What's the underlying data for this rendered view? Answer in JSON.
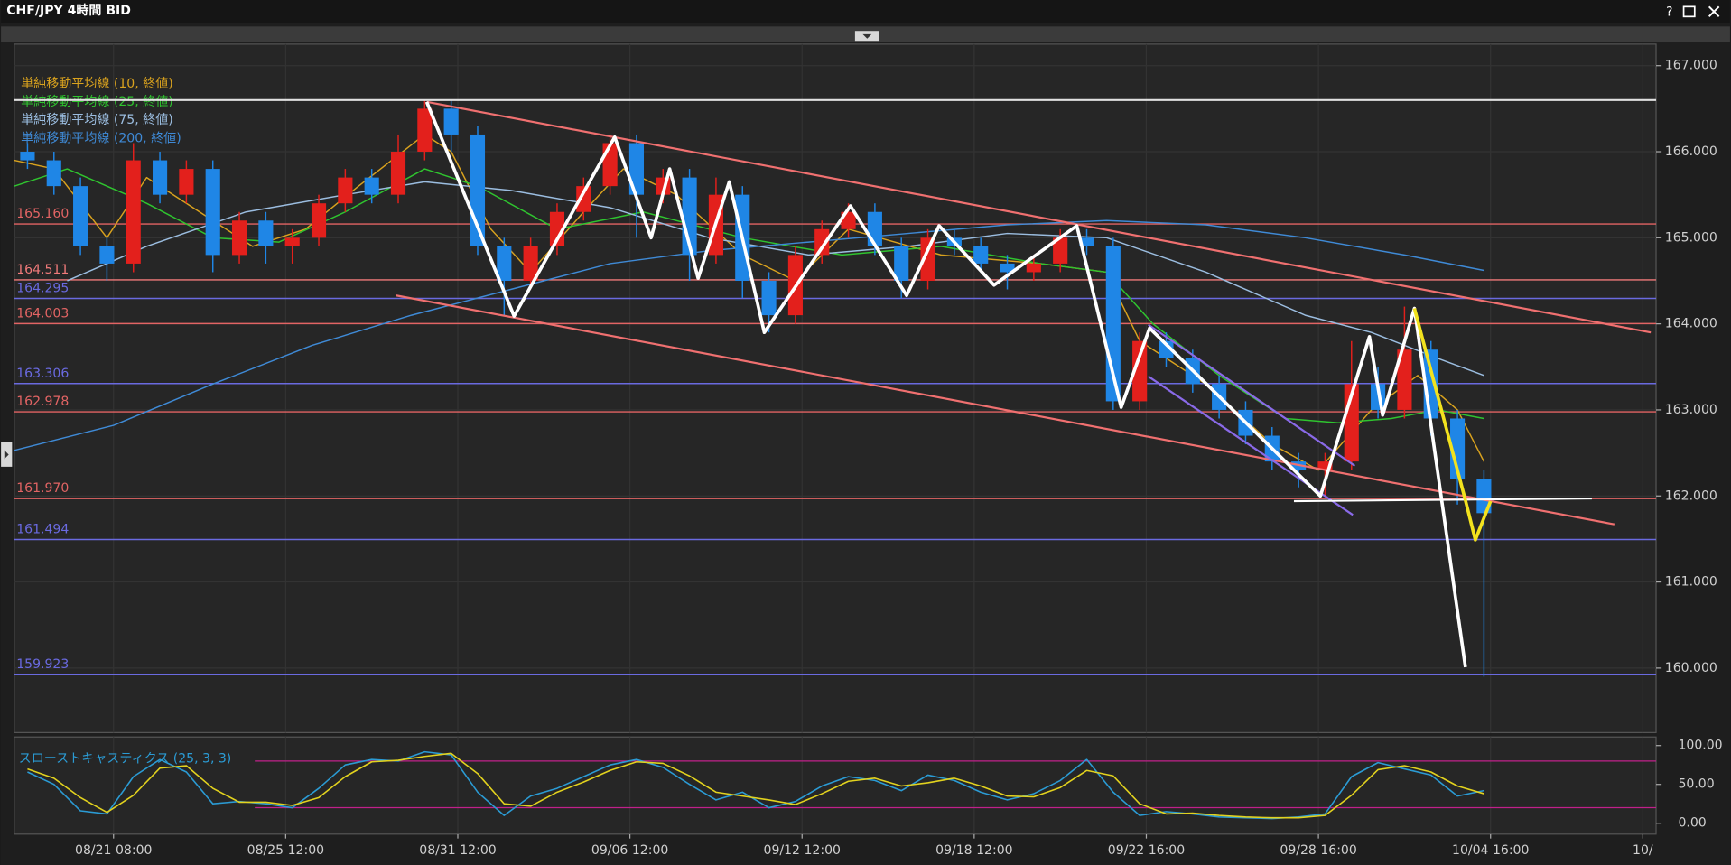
{
  "window_buttons": [
    "?"
  ],
  "chart_data": [
    {
      "type": "candlestick",
      "title": "CHF/JPY 4時間 BID",
      "xlim": [
        0,
        248
      ],
      "xticks": [
        {
          "value": 15,
          "label": "08/21 08:00"
        },
        {
          "value": 41,
          "label": "08/25 12:00"
        },
        {
          "value": 67,
          "label": "08/31 12:00"
        },
        {
          "value": 93,
          "label": "09/06 12:00"
        },
        {
          "value": 119,
          "label": "09/12 12:00"
        },
        {
          "value": 145,
          "label": "09/18 12:00"
        },
        {
          "value": 171,
          "label": "09/22 16:00"
        },
        {
          "value": 197,
          "label": "09/28 16:00"
        },
        {
          "value": 223,
          "label": "10/04 16:00"
        },
        {
          "value": 246,
          "label": "10/"
        }
      ],
      "ylim": [
        159.25,
        167.25
      ],
      "yticks": [
        {
          "value": 160,
          "label": "160.000"
        },
        {
          "value": 161,
          "label": "161.000"
        },
        {
          "value": 162,
          "label": "162.000"
        },
        {
          "value": 163,
          "label": "163.000"
        },
        {
          "value": 164,
          "label": "164.000"
        },
        {
          "value": 165,
          "label": "165.000"
        },
        {
          "value": 166,
          "label": "166.000"
        },
        {
          "value": 167,
          "label": "167.000"
        }
      ],
      "grid": true,
      "up_color": "#e3201c",
      "down_color": "#1f86e6",
      "x": [
        2,
        6,
        10,
        14,
        18,
        22,
        26,
        30,
        34,
        38,
        42,
        46,
        50,
        54,
        58,
        62,
        66,
        70,
        74,
        78,
        82,
        86,
        90,
        94,
        98,
        102,
        106,
        110,
        114,
        118,
        122,
        126,
        130,
        134,
        138,
        142,
        146,
        150,
        154,
        158,
        162,
        166,
        170,
        174,
        178,
        182,
        186,
        190,
        194,
        198,
        202,
        206,
        210,
        214,
        218,
        222
      ],
      "candles": [
        [
          166.0,
          166.1,
          165.8,
          165.9
        ],
        [
          165.9,
          166.0,
          165.5,
          165.6
        ],
        [
          165.6,
          165.7,
          164.8,
          164.9
        ],
        [
          164.9,
          165.0,
          164.5,
          164.7
        ],
        [
          164.7,
          166.1,
          164.6,
          165.9
        ],
        [
          165.9,
          166.0,
          165.4,
          165.5
        ],
        [
          165.5,
          165.9,
          165.4,
          165.8
        ],
        [
          165.8,
          165.9,
          164.6,
          164.8
        ],
        [
          164.8,
          165.3,
          164.7,
          165.2
        ],
        [
          165.2,
          165.3,
          164.7,
          164.9
        ],
        [
          164.9,
          165.1,
          164.7,
          165.0
        ],
        [
          165.0,
          165.5,
          164.9,
          165.4
        ],
        [
          165.4,
          165.8,
          165.3,
          165.7
        ],
        [
          165.7,
          165.8,
          165.4,
          165.5
        ],
        [
          165.5,
          166.2,
          165.4,
          166.0
        ],
        [
          166.0,
          166.6,
          165.9,
          166.5
        ],
        [
          166.5,
          166.6,
          166.0,
          166.2
        ],
        [
          166.2,
          166.3,
          164.8,
          164.9
        ],
        [
          164.9,
          165.0,
          164.1,
          164.5
        ],
        [
          164.5,
          165.0,
          164.4,
          164.9
        ],
        [
          164.9,
          165.4,
          164.8,
          165.3
        ],
        [
          165.3,
          165.7,
          165.2,
          165.6
        ],
        [
          165.6,
          166.2,
          165.5,
          166.1
        ],
        [
          166.1,
          166.2,
          165.0,
          165.5
        ],
        [
          165.5,
          165.8,
          165.4,
          165.7
        ],
        [
          165.7,
          165.8,
          164.5,
          164.8
        ],
        [
          164.8,
          165.7,
          164.7,
          165.5
        ],
        [
          165.5,
          165.6,
          164.3,
          164.5
        ],
        [
          164.5,
          164.6,
          163.9,
          164.1
        ],
        [
          164.1,
          164.9,
          164.0,
          164.8
        ],
        [
          164.8,
          165.2,
          164.7,
          165.1
        ],
        [
          165.1,
          165.4,
          165.0,
          165.3
        ],
        [
          165.3,
          165.4,
          164.8,
          164.9
        ],
        [
          164.9,
          165.0,
          164.3,
          164.5
        ],
        [
          164.5,
          165.1,
          164.4,
          165.0
        ],
        [
          165.0,
          165.1,
          164.8,
          164.9
        ],
        [
          164.9,
          165.0,
          164.6,
          164.7
        ],
        [
          164.7,
          164.8,
          164.4,
          164.6
        ],
        [
          164.6,
          164.8,
          164.5,
          164.7
        ],
        [
          164.7,
          165.1,
          164.6,
          165.0
        ],
        [
          165.0,
          165.1,
          164.8,
          164.9
        ],
        [
          164.9,
          165.0,
          163.0,
          163.1
        ],
        [
          163.1,
          163.9,
          163.0,
          163.8
        ],
        [
          163.8,
          163.9,
          163.5,
          163.6
        ],
        [
          163.6,
          163.7,
          163.2,
          163.3
        ],
        [
          163.3,
          163.4,
          162.9,
          163.0
        ],
        [
          163.0,
          163.1,
          162.6,
          162.7
        ],
        [
          162.7,
          162.8,
          162.3,
          162.4
        ],
        [
          162.4,
          162.5,
          162.1,
          162.3
        ],
        [
          162.3,
          162.5,
          162.0,
          162.4
        ],
        [
          162.4,
          163.8,
          162.3,
          163.3
        ],
        [
          163.3,
          163.5,
          162.9,
          163.0
        ],
        [
          163.0,
          164.2,
          162.9,
          163.7
        ],
        [
          163.7,
          163.8,
          162.7,
          162.9
        ],
        [
          162.9,
          163.0,
          161.9,
          162.2
        ],
        [
          162.2,
          162.3,
          159.9,
          161.8
        ]
      ],
      "series": [
        {
          "name": "単純移動平均線 (10, 終値)",
          "color": "#d9a21e",
          "x": [
            0,
            6,
            14,
            20,
            28,
            36,
            44,
            52,
            62,
            66,
            72,
            78,
            86,
            92,
            100,
            110,
            118,
            126,
            140,
            155,
            165,
            170,
            180,
            190,
            197,
            205,
            212,
            218,
            222
          ],
          "values": [
            165.9,
            165.8,
            165.0,
            165.7,
            165.3,
            164.9,
            165.1,
            165.6,
            166.2,
            166.0,
            165.1,
            164.6,
            165.3,
            165.8,
            165.5,
            164.8,
            164.5,
            165.1,
            164.8,
            164.7,
            164.6,
            163.8,
            163.3,
            162.6,
            162.3,
            163.0,
            163.4,
            163.0,
            162.4
          ]
        },
        {
          "name": "単純移動平均線 (25, 終値)",
          "color": "#2fc42f",
          "x": [
            0,
            8,
            20,
            30,
            40,
            50,
            62,
            70,
            82,
            95,
            110,
            125,
            140,
            155,
            165,
            172,
            182,
            192,
            200,
            208,
            215,
            222
          ],
          "values": [
            165.6,
            165.8,
            165.4,
            165.0,
            164.95,
            165.3,
            165.8,
            165.6,
            165.1,
            165.3,
            165.0,
            164.8,
            164.9,
            164.7,
            164.6,
            164.0,
            163.4,
            162.9,
            162.85,
            162.9,
            163.0,
            162.9
          ]
        },
        {
          "name": "単純移動平均線 (75, 終値)",
          "color": "#9bbde0",
          "x": [
            8,
            20,
            35,
            50,
            62,
            75,
            90,
            105,
            120,
            135,
            150,
            165,
            180,
            195,
            205,
            215,
            222
          ],
          "values": [
            164.5,
            164.9,
            165.3,
            165.5,
            165.65,
            165.55,
            165.35,
            165.0,
            164.8,
            164.9,
            165.05,
            165.0,
            164.6,
            164.1,
            163.9,
            163.6,
            163.4
          ]
        },
        {
          "name": "単純移動平均線 (200, 終値)",
          "color": "#3f8ad6",
          "x": [
            0,
            15,
            30,
            45,
            60,
            75,
            90,
            105,
            120,
            135,
            150,
            165,
            180,
            195,
            210,
            222
          ],
          "values": [
            162.53,
            162.82,
            163.3,
            163.75,
            164.1,
            164.4,
            164.7,
            164.85,
            164.95,
            165.05,
            165.15,
            165.2,
            165.15,
            165.0,
            164.8,
            164.62
          ]
        }
      ],
      "levels": [
        {
          "value": 165.16,
          "label": "165.160",
          "color": "#e26464"
        },
        {
          "value": 164.511,
          "label": "164.511",
          "color": "#f07a7a"
        },
        {
          "value": 164.295,
          "label": "164.295",
          "color": "#6a6ae0"
        },
        {
          "value": 164.003,
          "label": "164.003",
          "color": "#e26464"
        },
        {
          "value": 163.306,
          "label": "163.306",
          "color": "#6a6ae0"
        },
        {
          "value": 162.978,
          "label": "162.978",
          "color": "#e26464"
        },
        {
          "value": 161.97,
          "label": "161.970",
          "color": "#e26464"
        },
        {
          "value": 161.494,
          "label": "161.494",
          "color": "#6a6ae0"
        },
        {
          "value": 159.923,
          "label": "159.923",
          "color": "#6a6ae0"
        }
      ],
      "drawings": [
        {
          "color": "#e0e0e0",
          "x": [
            0,
            248
          ],
          "values": [
            166.6,
            166.6
          ]
        },
        {
          "color": "#f07070",
          "x": [
            62.3,
            247.2
          ],
          "values": [
            166.58,
            163.9
          ]
        },
        {
          "color": "#f07070",
          "x": [
            57.7,
            241.7
          ],
          "values": [
            164.33,
            161.67
          ]
        },
        {
          "color": "#8a6ae8",
          "x": [
            171.3,
            202.5
          ],
          "values": [
            163.99,
            162.35
          ]
        },
        {
          "color": "#8a6ae8",
          "x": [
            171.3,
            202.2
          ],
          "values": [
            163.39,
            161.78
          ]
        },
        {
          "color": "#ffffff",
          "x": [
            193.3,
            238.3
          ],
          "values": [
            161.94,
            161.97
          ]
        },
        {
          "color": "#ffffff",
          "x": [
            62.3,
            75.5,
            90.7,
            96.2,
            99,
            103.3,
            108,
            113.3,
            126.3,
            134.8,
            139.7,
            148,
            160.5,
            167.2,
            171.5,
            197.3,
            204.7,
            206.7,
            211.5,
            219.2
          ],
          "values": [
            166.58,
            164.09,
            166.17,
            165.0,
            165.8,
            164.53,
            165.65,
            163.9,
            165.37,
            164.33,
            165.14,
            164.45,
            165.14,
            163.03,
            163.95,
            162.0,
            163.85,
            162.94,
            164.18,
            160.01
          ]
        },
        {
          "color": "#f2e21e",
          "x": [
            211.5,
            219.2,
            220.7,
            223
          ],
          "values": [
            164.18,
            161.95,
            161.49,
            161.94
          ]
        }
      ]
    },
    {
      "type": "line",
      "title": "スローストキャスティクス (25, 3, 3)",
      "ylim": [
        -14,
        111
      ],
      "yticks": [
        {
          "value": 0,
          "label": "0.00"
        },
        {
          "value": 50,
          "label": "50.00"
        },
        {
          "value": 100,
          "label": "100.00"
        }
      ],
      "hlines": [
        80,
        20
      ],
      "hline_color": "#c0208a",
      "x": [
        2,
        6,
        10,
        14,
        18,
        22,
        26,
        30,
        34,
        38,
        42,
        46,
        50,
        54,
        58,
        62,
        66,
        70,
        74,
        78,
        82,
        86,
        90,
        94,
        98,
        102,
        106,
        110,
        114,
        118,
        122,
        126,
        130,
        134,
        138,
        142,
        146,
        150,
        154,
        158,
        162,
        166,
        170,
        174,
        178,
        182,
        186,
        190,
        194,
        198,
        202,
        206,
        210,
        214,
        218,
        222
      ],
      "series": [
        {
          "color": "#2b9bd4",
          "values": [
            66,
            50,
            16,
            12,
            60,
            82,
            66,
            25,
            28,
            25,
            20,
            45,
            75,
            82,
            80,
            92,
            88,
            40,
            10,
            35,
            45,
            60,
            75,
            82,
            72,
            50,
            30,
            40,
            20,
            28,
            48,
            60,
            55,
            42,
            62,
            55,
            40,
            30,
            38,
            55,
            82,
            40,
            10,
            15,
            12,
            8,
            7,
            6,
            8,
            12,
            60,
            78,
            70,
            62,
            35,
            42
          ]
        },
        {
          "color": "#e2d21e",
          "values": [
            70,
            58,
            33,
            14,
            36,
            71,
            74,
            45,
            27,
            27,
            23,
            33,
            60,
            79,
            81,
            86,
            90,
            64,
            25,
            22,
            40,
            53,
            68,
            79,
            77,
            61,
            40,
            35,
            30,
            24,
            38,
            54,
            58,
            48,
            52,
            58,
            48,
            35,
            34,
            46,
            68,
            61,
            25,
            12,
            13,
            10,
            8,
            7,
            7,
            10,
            36,
            69,
            74,
            66,
            48,
            38
          ]
        }
      ]
    }
  ]
}
